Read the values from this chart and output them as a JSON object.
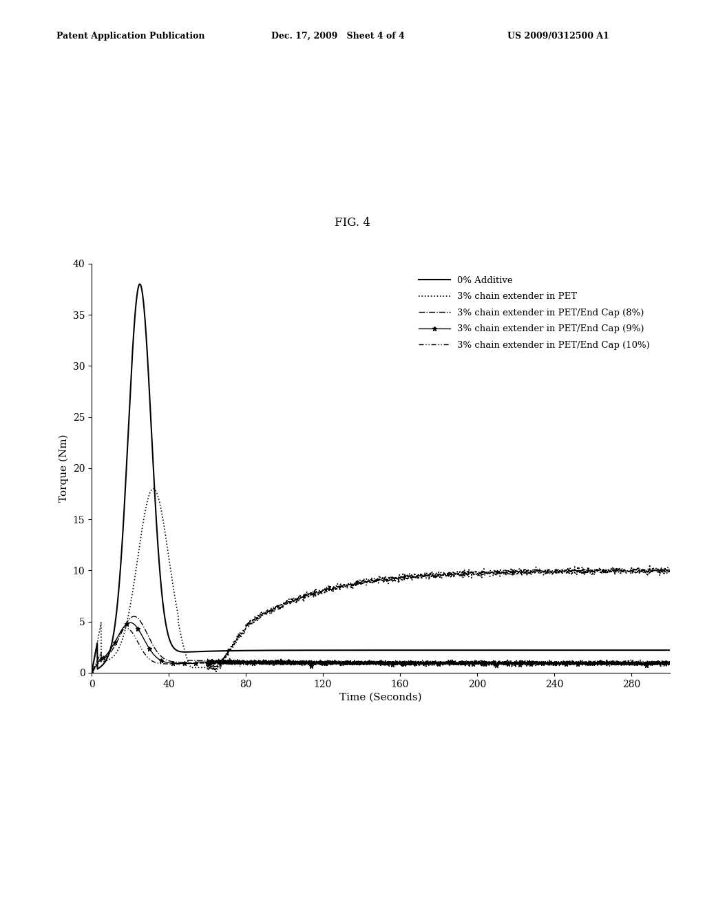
{
  "title": "FIG. 4",
  "xlabel": "Time (Seconds)",
  "ylabel": "Torque (Nm)",
  "xlim": [
    0,
    300
  ],
  "ylim": [
    0,
    40
  ],
  "xticks": [
    0,
    40,
    80,
    120,
    160,
    200,
    240,
    280
  ],
  "yticks": [
    0,
    5,
    10,
    15,
    20,
    25,
    30,
    35,
    40
  ],
  "header_left": "Patent Application Publication",
  "header_center": "Dec. 17, 2009   Sheet 4 of 4",
  "header_right": "US 2009/0312500 A1",
  "legend": [
    "0% Additive",
    "3% chain extender in PET",
    "3% chain extender in PET/End Cap (8%)",
    "3% chain extender in PET/End Cap (9%)",
    "3% chain extender in PET/End Cap (10%)"
  ],
  "background_color": "#ffffff",
  "line_color": "#000000"
}
